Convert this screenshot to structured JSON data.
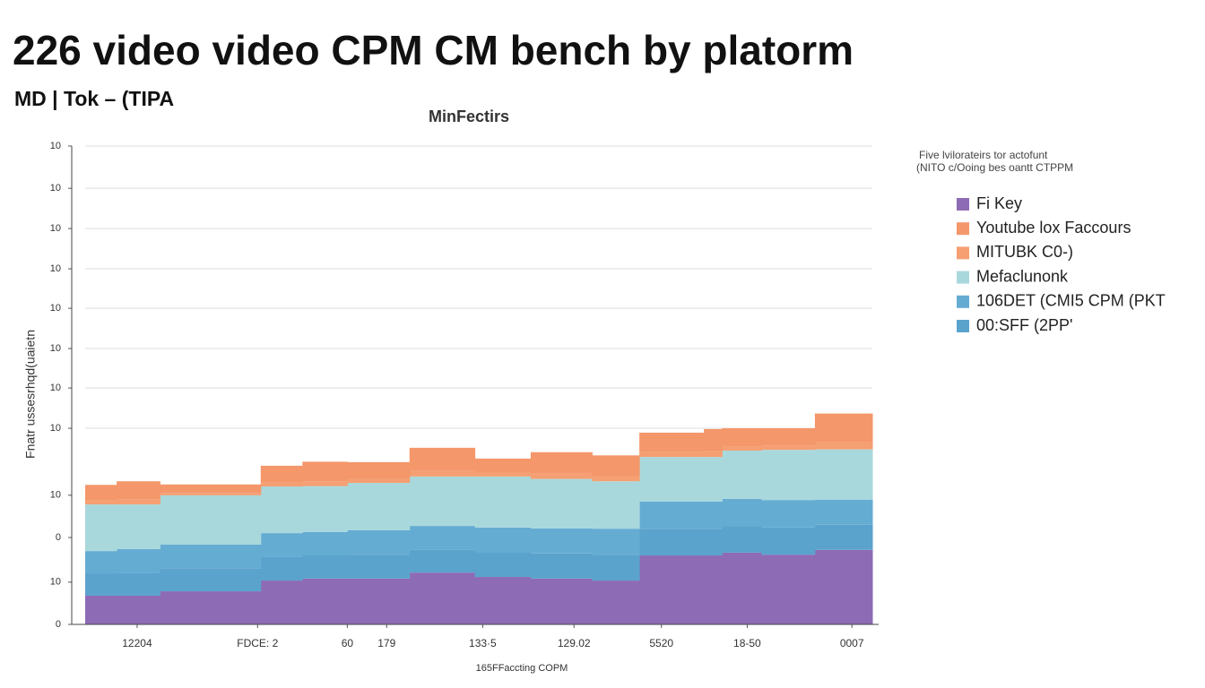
{
  "chart_data": {
    "type": "stacked-step-area",
    "title": "226 video video CPM CM bench by platorm",
    "subtitle": "MD | Tok – (TIPA",
    "chart_title": "MinFectirs",
    "x_label": "165FFaccting COPM",
    "y_label": "Fnatr ussesrhqd(uaietn",
    "legend_title": [
      "Five lvilorateirs tor actofunt",
      "(NITO c/Ooing bes oantt CTPPM"
    ],
    "x": [
      0,
      4,
      9.5,
      22.3,
      27.6,
      33.3,
      41.2,
      49.5,
      56.6,
      64.4,
      70.4,
      78.6,
      80.9,
      85.9,
      92.7
    ],
    "xlim": [
      0,
      100
    ],
    "xticks": [
      {
        "value": 6.6,
        "label": "12204"
      },
      {
        "value": 21.9,
        "label": "FDCE: 2"
      },
      {
        "value": 33.3,
        "label": "60"
      },
      {
        "value": 38.3,
        "label": "179"
      },
      {
        "value": 50.5,
        "label": "133·5"
      },
      {
        "value": 62.1,
        "label": "129.02"
      },
      {
        "value": 73.2,
        "label": "5520"
      },
      {
        "value": 84.1,
        "label": "18-50"
      },
      {
        "value": 97.4,
        "label": "0007"
      }
    ],
    "ylim": [
      0,
      12
    ],
    "yticks": [
      0,
      {
        "value": 1.06,
        "label": "10"
      },
      {
        "value": 2.18,
        "label": "0"
      },
      {
        "value": 3.24,
        "label": "10"
      },
      {
        "value": 4.92,
        "label": "10"
      },
      {
        "value": 5.93,
        "label": "10"
      },
      {
        "value": 6.92,
        "label": "10"
      },
      {
        "value": 7.93,
        "label": "10"
      },
      {
        "value": 8.92,
        "label": "10"
      },
      {
        "value": 9.93,
        "label": "10"
      },
      {
        "value": 10.94,
        "label": "10"
      },
      {
        "value": 12,
        "label": "10"
      }
    ],
    "grid": true,
    "legend": "right",
    "series": [
      {
        "name": "Fi Key",
        "color": "#8e6bb5",
        "values": [
          0.72,
          0.72,
          0.83,
          1.1,
          1.15,
          1.15,
          1.3,
          1.19,
          1.15,
          1.1,
          1.73,
          1.73,
          1.8,
          1.75,
          1.87
        ]
      },
      {
        "name": "Youtube lox Faccours",
        "color": "#f4976a",
        "values": [
          0.39,
          0.46,
          0.21,
          0.42,
          0.49,
          0.42,
          0.58,
          0.36,
          0.54,
          0.52,
          0.49,
          0.56,
          0.45,
          0.43,
          0.72
        ]
      },
      {
        "name": "MITUBK C0-)",
        "color": "#f59f72",
        "values": [
          0.1,
          0.12,
          0.06,
          0.1,
          0.12,
          0.1,
          0.14,
          0.09,
          0.13,
          0.13,
          0.12,
          0.14,
          0.11,
          0.11,
          0.18
        ]
      },
      {
        "name": "Mefaclunonk",
        "color": "#a9d8dc",
        "values": [
          1.17,
          1.12,
          1.24,
          1.17,
          1.15,
          1.19,
          1.24,
          1.28,
          1.24,
          1.19,
          1.12,
          1.12,
          1.21,
          1.26,
          1.26
        ]
      },
      {
        "name": "106DET (CMI5 CPM (PKT",
        "color": "#65acd3",
        "values": [
          0.56,
          0.59,
          0.59,
          0.59,
          0.59,
          0.61,
          0.59,
          0.62,
          0.63,
          0.65,
          0.68,
          0.68,
          0.68,
          0.69,
          0.63
        ]
      },
      {
        "name": "00:SFF (2PP'",
        "color": "#5aa3cd",
        "values": [
          0.56,
          0.58,
          0.58,
          0.6,
          0.58,
          0.6,
          0.58,
          0.62,
          0.63,
          0.65,
          0.67,
          0.67,
          0.67,
          0.68,
          0.63
        ]
      }
    ]
  }
}
